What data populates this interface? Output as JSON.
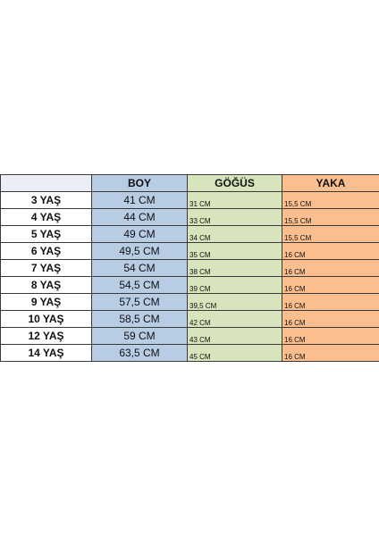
{
  "headers": {
    "age": "",
    "boy": "BOY",
    "gogus": "GÖĞÜS",
    "yaka": "YAKA"
  },
  "rows": [
    {
      "age": "3 YAŞ",
      "boy": "41 CM",
      "gogus": "31 CM",
      "yaka": "15,5 CM"
    },
    {
      "age": "4 YAŞ",
      "boy": "44 CM",
      "gogus": "33 CM",
      "yaka": "15,5 CM"
    },
    {
      "age": "5 YAŞ",
      "boy": "49 CM",
      "gogus": "34 CM",
      "yaka": "15,5 CM"
    },
    {
      "age": "6 YAŞ",
      "boy": "49,5 CM",
      "gogus": "35 CM",
      "yaka": "16 CM"
    },
    {
      "age": "7 YAŞ",
      "boy": "54 CM",
      "gogus": "38 CM",
      "yaka": "16 CM"
    },
    {
      "age": "8 YAŞ",
      "boy": "54,5 CM",
      "gogus": "39 CM",
      "yaka": "16 CM"
    },
    {
      "age": "9 YAŞ",
      "boy": "57,5 CM",
      "gogus": "39,5 CM",
      "yaka": "16 CM"
    },
    {
      "age": "10 YAŞ",
      "boy": "58,5 CM",
      "gogus": "42 CM",
      "yaka": "16 CM"
    },
    {
      "age": "12 YAŞ",
      "boy": "59 CM",
      "gogus": "43 CM",
      "yaka": "16 CM"
    },
    {
      "age": "14 YAŞ",
      "boy": "63,5 CM",
      "gogus": "45 CM",
      "yaka": "16 CM"
    }
  ],
  "colors": {
    "boy": "#b8cce4",
    "gogus": "#d7e4bc",
    "yaka": "#fbbf8f",
    "header_empty": "#eceef7"
  }
}
